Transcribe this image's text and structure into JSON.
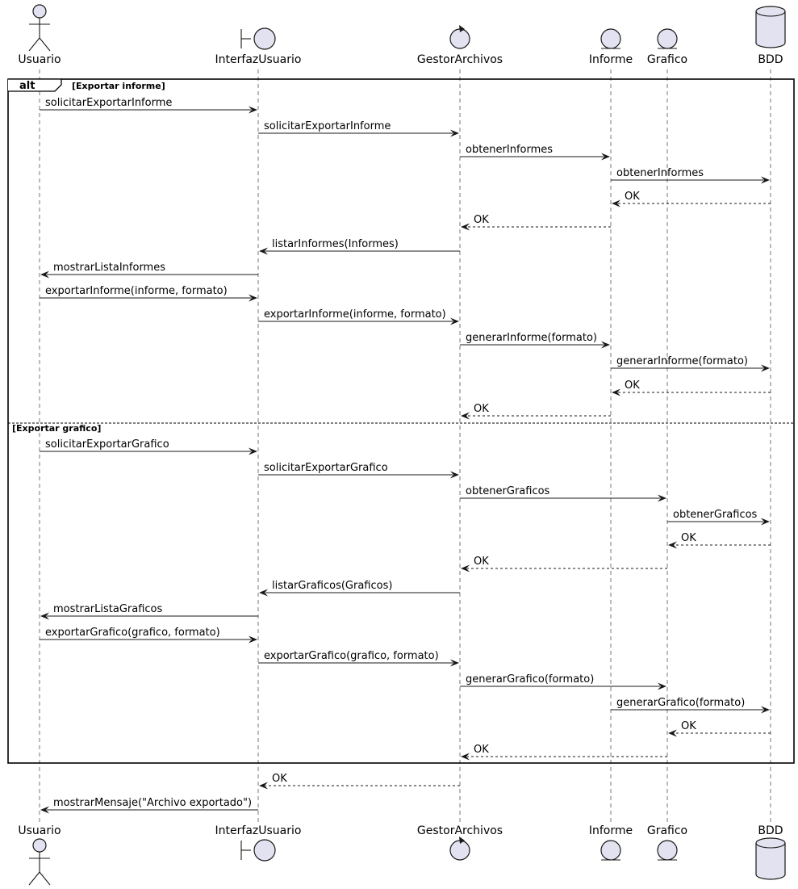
{
  "participants": [
    {
      "id": "usuario",
      "label": "Usuario",
      "kind": "actor",
      "icon": "actor-icon"
    },
    {
      "id": "interfaz",
      "label": "InterfazUsuario",
      "kind": "boundary",
      "icon": "boundary-icon"
    },
    {
      "id": "gestor",
      "label": "GestorArchivos",
      "kind": "control",
      "icon": "control-icon"
    },
    {
      "id": "informe",
      "label": "Informe",
      "kind": "entity",
      "icon": "entity-icon"
    },
    {
      "id": "grafico",
      "label": "Grafico",
      "kind": "entity",
      "icon": "entity-icon"
    },
    {
      "id": "bdd",
      "label": "BDD",
      "kind": "database",
      "icon": "database-icon"
    }
  ],
  "alt": {
    "keyword": "alt",
    "branches": [
      {
        "guard": "[Exportar informe]"
      },
      {
        "guard": "[Exportar grafico]"
      }
    ]
  },
  "messages": [
    {
      "from": "usuario",
      "to": "interfaz",
      "label": "solicitarExportarInforme",
      "type": "sync"
    },
    {
      "from": "interfaz",
      "to": "gestor",
      "label": "solicitarExportarInforme",
      "type": "sync"
    },
    {
      "from": "gestor",
      "to": "informe",
      "label": "obtenerInformes",
      "type": "sync"
    },
    {
      "from": "informe",
      "to": "bdd",
      "label": "obtenerInformes",
      "type": "sync"
    },
    {
      "from": "bdd",
      "to": "informe",
      "label": "OK",
      "type": "return"
    },
    {
      "from": "informe",
      "to": "gestor",
      "label": "OK",
      "type": "return"
    },
    {
      "from": "gestor",
      "to": "interfaz",
      "label": "listarInformes(Informes)",
      "type": "sync"
    },
    {
      "from": "interfaz",
      "to": "usuario",
      "label": "mostrarListaInformes",
      "type": "sync"
    },
    {
      "from": "usuario",
      "to": "interfaz",
      "label": "exportarInforme(informe, formato)",
      "type": "sync"
    },
    {
      "from": "interfaz",
      "to": "gestor",
      "label": "exportarInforme(informe, formato)",
      "type": "sync"
    },
    {
      "from": "gestor",
      "to": "informe",
      "label": "generarInforme(formato)",
      "type": "sync"
    },
    {
      "from": "informe",
      "to": "bdd",
      "label": "generarInforme(formato)",
      "type": "sync"
    },
    {
      "from": "bdd",
      "to": "informe",
      "label": "OK",
      "type": "return"
    },
    {
      "from": "informe",
      "to": "gestor",
      "label": "OK",
      "type": "return"
    },
    {
      "from": "usuario",
      "to": "interfaz",
      "label": "solicitarExportarGrafico",
      "type": "sync"
    },
    {
      "from": "interfaz",
      "to": "gestor",
      "label": "solicitarExportarGrafico",
      "type": "sync"
    },
    {
      "from": "gestor",
      "to": "grafico",
      "label": "obtenerGraficos",
      "type": "sync"
    },
    {
      "from": "grafico",
      "to": "bdd",
      "label": "obtenerGraficos",
      "type": "sync"
    },
    {
      "from": "bdd",
      "to": "grafico",
      "label": "OK",
      "type": "return"
    },
    {
      "from": "grafico",
      "to": "gestor",
      "label": "OK",
      "type": "return"
    },
    {
      "from": "gestor",
      "to": "interfaz",
      "label": "listarGraficos(Graficos)",
      "type": "sync"
    },
    {
      "from": "interfaz",
      "to": "usuario",
      "label": "mostrarListaGraficos",
      "type": "sync"
    },
    {
      "from": "usuario",
      "to": "interfaz",
      "label": "exportarGrafico(grafico, formato)",
      "type": "sync"
    },
    {
      "from": "interfaz",
      "to": "gestor",
      "label": "exportarGrafico(grafico, formato)",
      "type": "sync"
    },
    {
      "from": "gestor",
      "to": "grafico",
      "label": "generarGrafico(formato)",
      "type": "sync"
    },
    {
      "from": "informe",
      "to": "bdd",
      "label": "generarGrafico(formato)",
      "type": "sync"
    },
    {
      "from": "bdd",
      "to": "grafico",
      "label": "OK",
      "type": "return"
    },
    {
      "from": "grafico",
      "to": "gestor",
      "label": "OK",
      "type": "return"
    },
    {
      "from": "gestor",
      "to": "interfaz",
      "label": "OK",
      "type": "return"
    },
    {
      "from": "interfaz",
      "to": "usuario",
      "label": "mostrarMensaje(\"Archivo exportado\")",
      "type": "sync"
    }
  ],
  "colors": {
    "participant_fill": "#E2E2F0",
    "stroke": "#181818",
    "lifeline": "#777777"
  }
}
